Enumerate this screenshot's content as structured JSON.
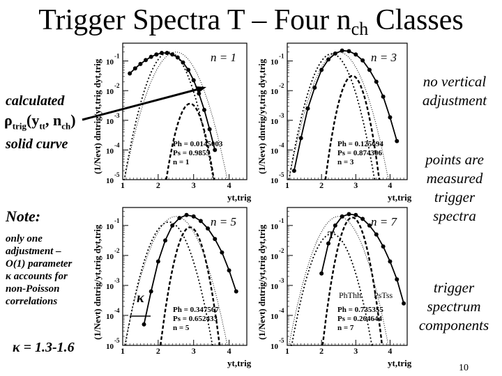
{
  "slide": {
    "title_main": "Trigger Spectra T – Four n",
    "title_sub": "ch",
    "title_end": " Classes",
    "left_calc": "calculated",
    "left_rho_main": "ρ",
    "left_rho_sub": "trig",
    "left_rho_args": "(y",
    "left_rho_sub2": "tt",
    "left_rho_mid": ", n",
    "left_rho_sub3": "ch",
    "left_rho_end": ")",
    "left_solid": "solid curve",
    "note_title": "Note:",
    "note_lines": [
      "only one",
      "adjustment –",
      "O(1) parameter",
      "κ accounts for",
      "non-Poisson",
      "correlations"
    ],
    "kappa_range": "κ = 1.3-1.6",
    "right_note1": [
      "no vertical",
      "adjustment"
    ],
    "right_note2": [
      "points are",
      "measured",
      "trigger",
      "spectra"
    ],
    "right_note3": [
      "trigger",
      "spectrum",
      "components"
    ],
    "page_number": "10"
  },
  "chart_data": [
    {
      "type": "line",
      "panel_label": "n = 1",
      "xlabel": "yt,trig",
      "ylabel": "(1/Nevt) dntrig/yt,trig dyt,trig",
      "xlim": [
        1,
        4.5
      ],
      "ylim_log10": [
        -5,
        -0.4
      ],
      "yscale": "log",
      "xticks": [
        "1",
        "2",
        "3",
        "4"
      ],
      "yticks": [
        "10-1",
        "10-2",
        "10-3",
        "10-4",
        "10-5"
      ],
      "stats": [
        "Ph = 0.0145003",
        "Ps = 0.9855",
        "n = 1"
      ],
      "ph": 0.0145003,
      "ps": 0.9855,
      "n": 1,
      "data_points": {
        "x": [
          1.2,
          1.35,
          1.5,
          1.65,
          1.8,
          1.95,
          2.1,
          2.25,
          2.4,
          2.55,
          2.7,
          2.85,
          3.0,
          3.15,
          3.3,
          3.45,
          3.6
        ],
        "y_log10": [
          -1.42,
          -1.25,
          -1.1,
          -0.97,
          -0.86,
          -0.78,
          -0.73,
          -0.73,
          -0.78,
          -0.88,
          -1.05,
          -1.3,
          -1.65,
          -2.1,
          -2.65,
          -3.3,
          -4.0
        ]
      }
    },
    {
      "type": "line",
      "panel_label": "n = 3",
      "xlabel": "yt,trig",
      "ylabel": "(1/Nevt) dntrig/yt,trig dyt,trig",
      "xlim": [
        1,
        4.5
      ],
      "ylim_log10": [
        -5,
        -0.4
      ],
      "yscale": "log",
      "xticks": [
        "1",
        "2",
        "3",
        "4"
      ],
      "yticks": [
        "10-1",
        "10-2",
        "10-3",
        "10-4",
        "10-5"
      ],
      "stats": [
        "Ph = 0.125694",
        "Ps = 0.874306",
        "n = 3"
      ],
      "ph": 0.125694,
      "ps": 0.874306,
      "n": 3,
      "data_points": {
        "x": [
          1.2,
          1.4,
          1.6,
          1.8,
          2.0,
          2.2,
          2.4,
          2.6,
          2.8,
          3.0,
          3.2,
          3.4,
          3.6,
          3.8,
          4.0,
          4.2
        ],
        "y_log10": [
          -4.7,
          -3.6,
          -2.6,
          -1.9,
          -1.3,
          -0.95,
          -0.75,
          -0.65,
          -0.67,
          -0.78,
          -0.98,
          -1.3,
          -1.7,
          -2.2,
          -2.9,
          -3.7
        ]
      }
    },
    {
      "type": "line",
      "panel_label": "n = 5",
      "xlabel": "yt,trig",
      "ylabel": "(1/Nevt) dntrig/yt,trig dyt,trig",
      "xlim": [
        1,
        4.5
      ],
      "ylim_log10": [
        -5,
        -0.4
      ],
      "yscale": "log",
      "xticks": [
        "1",
        "2",
        "3",
        "4"
      ],
      "yticks": [
        "10-1",
        "10-2",
        "10-3",
        "10-4",
        "10-5"
      ],
      "stats": [
        "Ph = 0.347567",
        "Ps = 0.652433",
        "n = 5"
      ],
      "ph": 0.347567,
      "ps": 0.652433,
      "n": 5,
      "annotation": "κ",
      "data_points": {
        "x": [
          1.6,
          1.8,
          2.0,
          2.2,
          2.4,
          2.6,
          2.8,
          3.0,
          3.2,
          3.4,
          3.6,
          3.8,
          4.0,
          4.2
        ],
        "y_log10": [
          -4.3,
          -3.2,
          -2.2,
          -1.5,
          -1.0,
          -0.75,
          -0.65,
          -0.7,
          -0.85,
          -1.1,
          -1.45,
          -1.9,
          -2.5,
          -3.2
        ]
      }
    },
    {
      "type": "line",
      "panel_label": "n = 7",
      "xlabel": "yt,trig",
      "ylabel": "(1/Nevt) dntrig/yt,trig dyt,trig",
      "xlim": [
        1,
        4.5
      ],
      "ylim_log10": [
        -5,
        -0.4
      ],
      "yscale": "log",
      "xticks": [
        "1",
        "2",
        "3",
        "4"
      ],
      "yticks": [
        "10-1",
        "10-2",
        "10-3",
        "10-4",
        "10-5"
      ],
      "stats": [
        "Ph = 0.735355",
        "Ps = 0.264644",
        "n = 7"
      ],
      "ph": 0.735355,
      "ps": 0.264644,
      "n": 7,
      "annotations": [
        "T",
        "PhThh",
        "PsTss"
      ],
      "data_points": {
        "x": [
          2.0,
          2.2,
          2.4,
          2.6,
          2.8,
          3.0,
          3.2,
          3.4,
          3.6,
          3.8,
          4.0,
          4.2,
          4.4
        ],
        "y_log10": [
          -2.6,
          -1.6,
          -1.0,
          -0.7,
          -0.62,
          -0.65,
          -0.78,
          -1.0,
          -1.3,
          -1.7,
          -2.2,
          -2.8,
          -3.6
        ]
      }
    }
  ]
}
